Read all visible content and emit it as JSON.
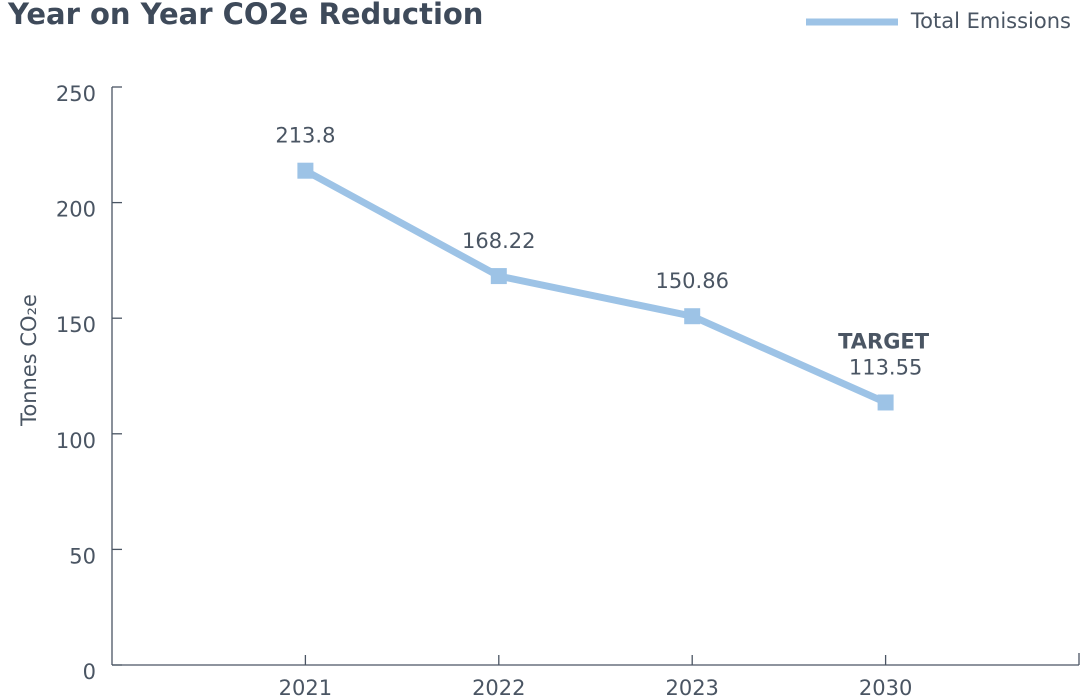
{
  "chart_data": {
    "type": "line",
    "title": "Year on Year CO2e Reduction",
    "y_label": "Tonnes CO₂e",
    "annotation": "TARGET",
    "categories": [
      "2021",
      "2022",
      "2023",
      "2030"
    ],
    "series": [
      {
        "name": "Total Emissions",
        "color": "#9dc3e6",
        "values": [
          213.8,
          168.22,
          150.86,
          113.55
        ]
      }
    ],
    "ylim": [
      0,
      250
    ],
    "yticks": [
      0,
      50,
      100,
      150,
      200,
      250
    ],
    "legend": "top-right"
  }
}
